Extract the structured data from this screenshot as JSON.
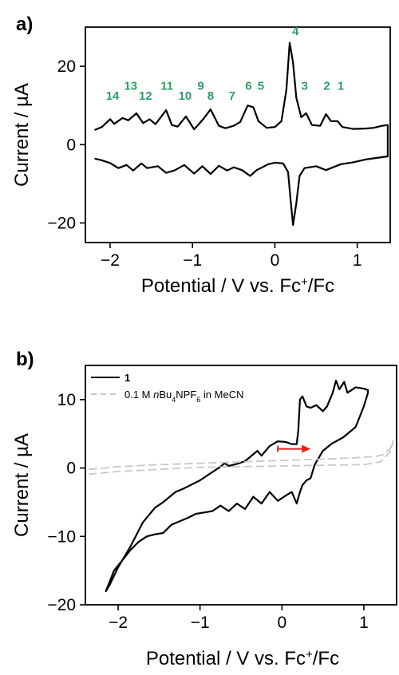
{
  "chart_data": [
    {
      "panel": "a)",
      "type": "line",
      "xlabel": {
        "base": "Potential / V vs. Fc",
        "sup": "+",
        "tail": "/Fc"
      },
      "ylabel": "Current / µA",
      "xlim": [
        -2.3,
        1.4
      ],
      "ylim": [
        -25,
        30
      ],
      "xticks": [
        -2,
        -1,
        0,
        1
      ],
      "yticks": [
        -20,
        0,
        20
      ],
      "line_color": "#000000",
      "series": [
        {
          "segment": "oxidation",
          "points": [
            [
              -2.18,
              3.8
            ],
            [
              -2.1,
              4.5
            ],
            [
              -2.0,
              6.5
            ],
            [
              -1.95,
              5.3
            ],
            [
              -1.85,
              6.8
            ],
            [
              -1.78,
              6.2
            ],
            [
              -1.68,
              8.0
            ],
            [
              -1.6,
              5.5
            ],
            [
              -1.52,
              6.5
            ],
            [
              -1.45,
              5.2
            ],
            [
              -1.32,
              8.8
            ],
            [
              -1.25,
              5.0
            ],
            [
              -1.18,
              4.6
            ],
            [
              -1.08,
              7.2
            ],
            [
              -0.98,
              3.9
            ],
            [
              -0.87,
              6.5
            ],
            [
              -0.78,
              9.0
            ],
            [
              -0.68,
              4.8
            ],
            [
              -0.6,
              4.2
            ],
            [
              -0.5,
              4.8
            ],
            [
              -0.42,
              5.8
            ],
            [
              -0.33,
              10.0
            ],
            [
              -0.26,
              9.5
            ],
            [
              -0.2,
              6.0
            ],
            [
              -0.1,
              4.3
            ],
            [
              0.0,
              4.5
            ],
            [
              0.08,
              6.0
            ],
            [
              0.14,
              14.0
            ],
            [
              0.18,
              26.0
            ],
            [
              0.22,
              21.0
            ],
            [
              0.26,
              12.0
            ],
            [
              0.32,
              7.0
            ],
            [
              0.38,
              8.0
            ],
            [
              0.45,
              5.0
            ],
            [
              0.55,
              4.8
            ],
            [
              0.62,
              7.8
            ],
            [
              0.68,
              6.0
            ],
            [
              0.76,
              6.0
            ],
            [
              0.82,
              4.5
            ],
            [
              0.95,
              4.0
            ],
            [
              1.1,
              4.1
            ],
            [
              1.2,
              4.3
            ],
            [
              1.3,
              4.8
            ],
            [
              1.37,
              5.0
            ],
            [
              1.37,
              -3.0
            ]
          ]
        },
        {
          "segment": "reduction",
          "points": [
            [
              1.37,
              -3.0
            ],
            [
              1.3,
              -3.2
            ],
            [
              1.1,
              -3.8
            ],
            [
              0.95,
              -4.5
            ],
            [
              0.8,
              -5.0
            ],
            [
              0.62,
              -6.5
            ],
            [
              0.5,
              -5.5
            ],
            [
              0.36,
              -6.0
            ],
            [
              0.3,
              -8.0
            ],
            [
              0.26,
              -15.0
            ],
            [
              0.22,
              -20.5
            ],
            [
              0.19,
              -14.0
            ],
            [
              0.16,
              -7.0
            ],
            [
              0.1,
              -4.8
            ],
            [
              0.0,
              -4.6
            ],
            [
              -0.08,
              -5.0
            ],
            [
              -0.22,
              -6.5
            ],
            [
              -0.3,
              -8.0
            ],
            [
              -0.4,
              -6.5
            ],
            [
              -0.5,
              -5.8
            ],
            [
              -0.58,
              -6.6
            ],
            [
              -0.68,
              -5.4
            ],
            [
              -0.78,
              -7.5
            ],
            [
              -0.88,
              -5.5
            ],
            [
              -0.98,
              -7.4
            ],
            [
              -1.1,
              -5.2
            ],
            [
              -1.22,
              -6.6
            ],
            [
              -1.32,
              -7.2
            ],
            [
              -1.42,
              -5.5
            ],
            [
              -1.55,
              -6.0
            ],
            [
              -1.62,
              -4.8
            ],
            [
              -1.72,
              -6.6
            ],
            [
              -1.8,
              -5.2
            ],
            [
              -1.9,
              -6.0
            ],
            [
              -2.0,
              -4.7
            ],
            [
              -2.1,
              -4.0
            ],
            [
              -2.18,
              -3.6
            ]
          ]
        }
      ],
      "annotations": [
        {
          "text": "14",
          "x": -1.97,
          "y": 11.5
        },
        {
          "text": "13",
          "x": -1.75,
          "y": 14.0
        },
        {
          "text": "12",
          "x": -1.57,
          "y": 11.5
        },
        {
          "text": "11",
          "x": -1.31,
          "y": 14.0
        },
        {
          "text": "10",
          "x": -1.09,
          "y": 11.5
        },
        {
          "text": "9",
          "x": -0.9,
          "y": 14.0
        },
        {
          "text": "8",
          "x": -0.78,
          "y": 11.5
        },
        {
          "text": "7",
          "x": -0.52,
          "y": 11.5
        },
        {
          "text": "6",
          "x": -0.32,
          "y": 14.0
        },
        {
          "text": "5",
          "x": -0.17,
          "y": 14.0
        },
        {
          "text": "4",
          "x": 0.25,
          "y": 28.0
        },
        {
          "text": "3",
          "x": 0.36,
          "y": 14.0
        },
        {
          "text": "2",
          "x": 0.63,
          "y": 14.0
        },
        {
          "text": "1",
          "x": 0.8,
          "y": 14.0
        }
      ]
    },
    {
      "panel": "b)",
      "type": "line",
      "xlabel": {
        "base": "Potential / V vs. Fc",
        "sup": "+",
        "tail": "/Fc"
      },
      "ylabel": "Current / µA",
      "xlim": [
        -2.4,
        1.4
      ],
      "ylim": [
        -20,
        15
      ],
      "xticks": [
        -2,
        -1,
        0,
        1
      ],
      "yticks": [
        -20,
        -10,
        0,
        10
      ],
      "legend": [
        {
          "name": "1",
          "color": "#000000",
          "style": "solid",
          "bold": true
        },
        {
          "name": "0.1 M nBu4NPF6 in MeCN",
          "parts": [
            "0.1 M ",
            "n",
            "Bu",
            "4",
            "NPF",
            "6",
            " in MeCN"
          ],
          "color": "#c8c8c8",
          "style": "dashed"
        }
      ],
      "legend_position": "top-left",
      "arrow": {
        "from": [
          -0.05,
          2.8
        ],
        "to": [
          0.35,
          2.8
        ],
        "color": "#e8221b"
      },
      "series": [
        {
          "name": "1",
          "color": "#000000",
          "points": [
            [
              -2.15,
              -18.0
            ],
            [
              -2.1,
              -17.0
            ],
            [
              -2.0,
              -14.5
            ],
            [
              -1.85,
              -11.5
            ],
            [
              -1.7,
              -8.0
            ],
            [
              -1.55,
              -5.8
            ],
            [
              -1.45,
              -5.0
            ],
            [
              -1.3,
              -3.5
            ],
            [
              -1.2,
              -3.0
            ],
            [
              -1.0,
              -1.8
            ],
            [
              -0.9,
              -1.0
            ],
            [
              -0.75,
              0.2
            ],
            [
              -0.7,
              0.7
            ],
            [
              -0.65,
              0.3
            ],
            [
              -0.55,
              0.6
            ],
            [
              -0.45,
              1.0
            ],
            [
              -0.35,
              2.0
            ],
            [
              -0.3,
              2.5
            ],
            [
              -0.25,
              1.8
            ],
            [
              -0.15,
              3.2
            ],
            [
              -0.05,
              3.9
            ],
            [
              0.05,
              3.8
            ],
            [
              0.12,
              3.5
            ],
            [
              0.18,
              3.5
            ],
            [
              0.2,
              5.5
            ],
            [
              0.22,
              10.0
            ],
            [
              0.25,
              10.5
            ],
            [
              0.3,
              9.0
            ],
            [
              0.35,
              8.8
            ],
            [
              0.42,
              9.2
            ],
            [
              0.5,
              8.3
            ],
            [
              0.55,
              9.0
            ],
            [
              0.62,
              11.0
            ],
            [
              0.66,
              12.8
            ],
            [
              0.7,
              11.5
            ],
            [
              0.76,
              12.6
            ],
            [
              0.8,
              11.0
            ],
            [
              0.9,
              11.8
            ],
            [
              1.0,
              11.6
            ],
            [
              1.05,
              11.4
            ],
            [
              1.05,
              11.0
            ],
            [
              1.0,
              9.0
            ],
            [
              0.9,
              6.0
            ],
            [
              0.75,
              4.5
            ],
            [
              0.6,
              3.5
            ],
            [
              0.5,
              2.5
            ],
            [
              0.45,
              1.5
            ],
            [
              0.4,
              0.5
            ],
            [
              0.35,
              -1.5
            ],
            [
              0.3,
              -1.8
            ],
            [
              0.25,
              -2.5
            ],
            [
              0.22,
              -3.5
            ],
            [
              0.18,
              -5.2
            ],
            [
              0.12,
              -3.5
            ],
            [
              0.05,
              -4.0
            ],
            [
              -0.05,
              -4.8
            ],
            [
              -0.15,
              -3.5
            ],
            [
              -0.25,
              -5.2
            ],
            [
              -0.35,
              -4.2
            ],
            [
              -0.45,
              -6.0
            ],
            [
              -0.55,
              -5.2
            ],
            [
              -0.65,
              -6.3
            ],
            [
              -0.75,
              -5.5
            ],
            [
              -0.85,
              -6.3
            ],
            [
              -0.95,
              -6.5
            ],
            [
              -1.05,
              -6.7
            ],
            [
              -1.15,
              -7.3
            ],
            [
              -1.25,
              -7.8
            ],
            [
              -1.35,
              -8.3
            ],
            [
              -1.45,
              -9.5
            ],
            [
              -1.55,
              -9.7
            ],
            [
              -1.65,
              -10.0
            ],
            [
              -1.75,
              -10.8
            ],
            [
              -1.85,
              -12.0
            ],
            [
              -1.95,
              -13.5
            ],
            [
              -2.05,
              -15.0
            ],
            [
              -2.1,
              -16.5
            ],
            [
              -2.15,
              -18.0
            ]
          ]
        },
        {
          "name": "0.1 M nBu4NPF6 in MeCN",
          "color": "#c8c8c8",
          "points": [
            [
              -2.35,
              -0.2
            ],
            [
              -2.0,
              0.2
            ],
            [
              -1.5,
              0.5
            ],
            [
              -1.0,
              0.7
            ],
            [
              -0.5,
              0.9
            ],
            [
              0.0,
              1.1
            ],
            [
              0.5,
              1.3
            ],
            [
              0.9,
              1.5
            ],
            [
              1.15,
              1.7
            ],
            [
              1.25,
              2.0
            ],
            [
              1.32,
              2.8
            ],
            [
              1.36,
              4.0
            ],
            [
              1.32,
              2.3
            ],
            [
              1.2,
              0.9
            ],
            [
              1.0,
              0.5
            ],
            [
              0.5,
              0.4
            ],
            [
              0.0,
              0.3
            ],
            [
              -0.5,
              0.2
            ],
            [
              -1.0,
              0.1
            ],
            [
              -1.5,
              -0.2
            ],
            [
              -2.0,
              -0.5
            ],
            [
              -2.35,
              -0.9
            ]
          ]
        }
      ]
    }
  ]
}
